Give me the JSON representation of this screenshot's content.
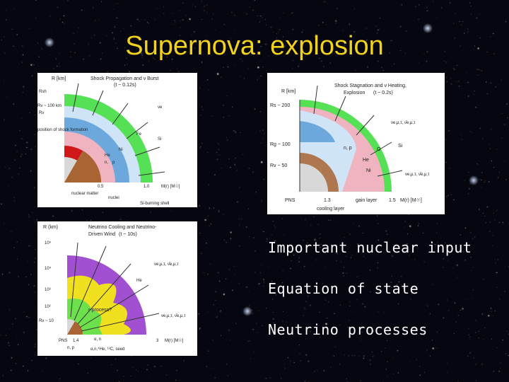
{
  "title": "Supernova: explosion",
  "bullets": [
    "Important nuclear input",
    "Equation of state",
    "Neutrino processes"
  ],
  "panels": {
    "shock_propagation": {
      "title": "Shock Propagation and ν Burst",
      "time": "(t ~ 0.12s)",
      "r_label": "R [km]",
      "rsh_label": "Rsh",
      "rv_label": "Rν ~ 100 km",
      "rs_label": "Rν",
      "formation_label": "position of shock formation",
      "n_label": "n,",
      "p_label": "p",
      "fe_label": "Fe",
      "si_label": "Si",
      "ne_label": "ne",
      "nu_label": "νe",
      "he_label": "He",
      "ni_label": "Ni",
      "m05": "0.5",
      "m10": "1.0",
      "m_axis": "M(r) [M☉]",
      "nuclear_matter": "nuclear matter",
      "nuclei": "nuclei",
      "si_shell": "Si-burning shell"
    },
    "shock_stagnation": {
      "title": "Shock Stagnation and ν Heating,",
      "subtitle": "Explosion",
      "time": "(t ~ 0.2s)",
      "r_label": "R [km]",
      "rs200": "Rs ~ 200",
      "rg100": "Rg ~ 100",
      "rv50": "Rν ~ 50",
      "nu_top": "νe,μ,τ, ν̄e,μ,τ",
      "nu_bottom": "νe,μ,τ, ν̄e,μ,τ",
      "si_label": "Si",
      "o_label": "O",
      "n_label": "n, p",
      "he_label": "He",
      "ni_label": "Ni",
      "pns": "PNS",
      "m13": "1.3",
      "gain": "gain layer",
      "m15": "1.5",
      "m_axis": "M(r) [M☉]",
      "cooling": "cooling layer"
    },
    "neutrino_cooling": {
      "title": "Neutrino Cooling and Neutrino-",
      "title2": "Driven Wind",
      "time": "(t ~ 10s)",
      "r_label": "R (km)",
      "r1e5": "10⁵",
      "r1e4": "10⁴",
      "r1e3": "10³",
      "r1e2": "10²",
      "rv10": "Rν ~ 10",
      "nu_top": "νe,μ,τ, ν̄e,μ,τ",
      "nu_bottom": "νe,μ,τ, ν̄e,μ,τ",
      "r_process": "r-process?",
      "he_label": "He",
      "pns": "PNS",
      "m14": "1.4",
      "np": "n, p",
      "alpha": "α, n",
      "seed": "α,n,⁴He, ¹²C, seed",
      "m3": "3",
      "m_axis": "M(r) [M☉]"
    }
  },
  "colors": {
    "title": "#f2d21c",
    "background": "#05060f",
    "outer_green": "#55e055",
    "purple": "#a050d0",
    "yellow": "#f0e020",
    "red": "#d01818",
    "brown": "#a86432",
    "light_blue": "#bcdcf4",
    "blue": "#6ca8dc",
    "pink": "#f0b4c0"
  }
}
